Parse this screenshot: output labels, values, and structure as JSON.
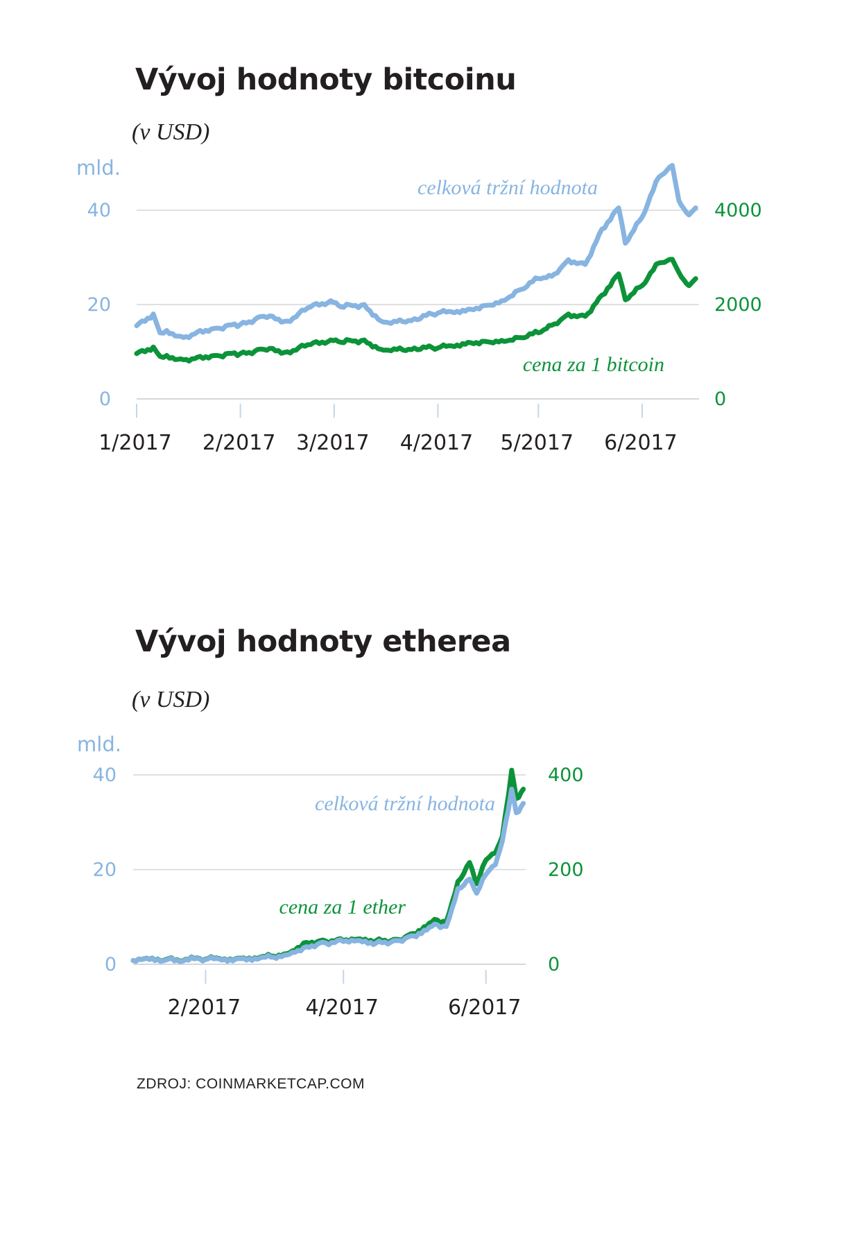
{
  "colors": {
    "blue": "#87b4e1",
    "green": "#0c9339",
    "grid": "#d6d6d6",
    "axis": "#c4d6e6",
    "text": "#231f20"
  },
  "footer": {
    "source": "ZDROJ: COINMARKETCAP.COM"
  },
  "chart_data": [
    {
      "type": "line",
      "title": "Vývoj hodnoty bitcoinu",
      "subtitle": "(v USD)",
      "left_axis_unit": "mld.",
      "left_ticks": [
        "0",
        "20",
        "40"
      ],
      "right_ticks": [
        "0",
        "2000",
        "4000"
      ],
      "x_ticks": [
        "1/2017",
        "2/2017",
        "3/2017",
        "4/2017",
        "5/2017",
        "6/2017"
      ],
      "ylim_left": [
        0,
        40
      ],
      "ylim_right": [
        0,
        4000
      ],
      "grid": true,
      "x": [
        "2017-01-01",
        "2017-01-06",
        "2017-01-08",
        "2017-01-10",
        "2017-01-15",
        "2017-01-20",
        "2017-01-25",
        "2017-02-01",
        "2017-02-08",
        "2017-02-15",
        "2017-02-22",
        "2017-02-28",
        "2017-03-03",
        "2017-03-10",
        "2017-03-15",
        "2017-03-18",
        "2017-03-25",
        "2017-04-01",
        "2017-04-10",
        "2017-04-15",
        "2017-04-20",
        "2017-04-25",
        "2017-05-01",
        "2017-05-05",
        "2017-05-10",
        "2017-05-15",
        "2017-05-20",
        "2017-05-25",
        "2017-05-27",
        "2017-06-01",
        "2017-06-06",
        "2017-06-10",
        "2017-06-12",
        "2017-06-15",
        "2017-06-17"
      ],
      "series": [
        {
          "name": "celková tržní hodnota",
          "axis": "left",
          "values": [
            15.5,
            18.0,
            14.0,
            14.5,
            13.0,
            14.5,
            15.0,
            15.8,
            17.5,
            16.5,
            19.5,
            20.8,
            19.5,
            20.0,
            16.5,
            16.0,
            17.0,
            18.2,
            19.0,
            19.8,
            20.8,
            23.0,
            25.5,
            26.0,
            29.5,
            28.5,
            36.0,
            40.5,
            33.0,
            38.5,
            47.0,
            49.5,
            42.0,
            39.0,
            40.5
          ]
        },
        {
          "name": "cena za 1 bitcoin",
          "axis": "right",
          "values": [
            960,
            1100,
            900,
            920,
            830,
            900,
            920,
            960,
            1050,
            1000,
            1150,
            1250,
            1200,
            1250,
            1050,
            1020,
            1080,
            1080,
            1200,
            1220,
            1240,
            1300,
            1400,
            1560,
            1800,
            1750,
            2200,
            2650,
            2100,
            2400,
            2880,
            2960,
            2680,
            2400,
            2550
          ]
        }
      ]
    },
    {
      "type": "line",
      "title": "Vývoj hodnoty etherea",
      "subtitle": "(v USD)",
      "left_axis_unit": "mld.",
      "left_ticks": [
        "0",
        "20",
        "40"
      ],
      "right_ticks": [
        "0",
        "200",
        "400"
      ],
      "x_ticks": [
        "2/2017",
        "4/2017",
        "6/2017"
      ],
      "ylim_left": [
        0,
        40
      ],
      "ylim_right": [
        0,
        400
      ],
      "grid": true,
      "x": [
        "2017-01-01",
        "2017-01-15",
        "2017-02-01",
        "2017-02-15",
        "2017-03-01",
        "2017-03-10",
        "2017-03-15",
        "2017-03-22",
        "2017-04-01",
        "2017-04-15",
        "2017-04-25",
        "2017-05-01",
        "2017-05-10",
        "2017-05-15",
        "2017-05-20",
        "2017-05-25",
        "2017-05-28",
        "2017-06-01",
        "2017-06-05",
        "2017-06-08",
        "2017-06-12",
        "2017-06-14",
        "2017-06-17"
      ],
      "series": [
        {
          "name": "celková tržní hodnota",
          "axis": "left",
          "values": [
            0.8,
            0.9,
            1.0,
            1.2,
            1.5,
            2.5,
            3.5,
            4.5,
            4.8,
            4.5,
            5.0,
            6.0,
            8.5,
            8.0,
            16.0,
            18.0,
            15.0,
            19.0,
            21.0,
            26.0,
            37.0,
            32.0,
            34.0
          ]
        },
        {
          "name": "cena za 1 ether",
          "axis": "right",
          "values": [
            8,
            10,
            11,
            13,
            17,
            28,
            45,
            50,
            50,
            50,
            52,
            65,
            95,
            90,
            175,
            215,
            170,
            220,
            235,
            270,
            410,
            350,
            370
          ]
        }
      ],
      "annotations": []
    }
  ]
}
